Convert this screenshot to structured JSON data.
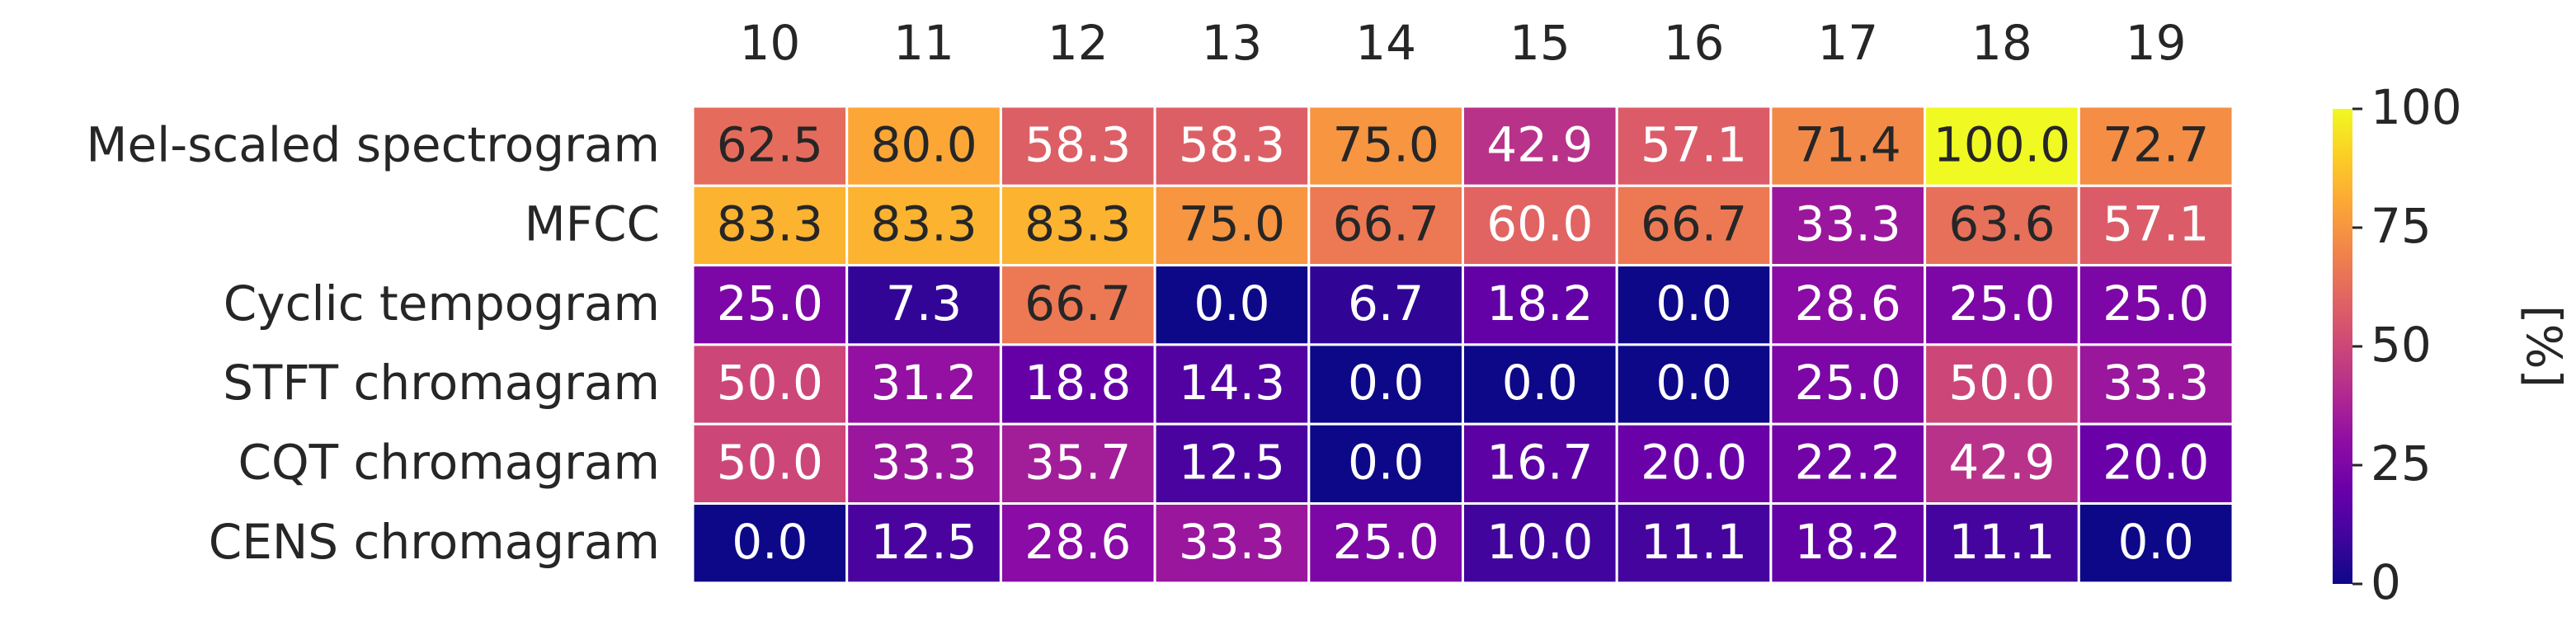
{
  "chart_data": {
    "type": "heatmap",
    "title": "",
    "xlabel": "",
    "ylabel": "",
    "x_categories": [
      "10",
      "11",
      "12",
      "13",
      "14",
      "15",
      "16",
      "17",
      "18",
      "19"
    ],
    "y_categories": [
      "Mel-scaled spectrogram",
      "MFCC",
      "Cyclic tempogram",
      "STFT chromagram",
      "CQT chromagram",
      "CENS chromagram"
    ],
    "values": [
      [
        62.5,
        80.0,
        58.3,
        58.3,
        75.0,
        42.9,
        57.1,
        71.4,
        100.0,
        72.7
      ],
      [
        83.3,
        83.3,
        83.3,
        75.0,
        66.7,
        60.0,
        66.7,
        33.3,
        63.6,
        57.1
      ],
      [
        25.0,
        7.3,
        66.7,
        0.0,
        6.7,
        18.2,
        0.0,
        28.6,
        25.0,
        25.0
      ],
      [
        50.0,
        31.2,
        18.8,
        14.3,
        0.0,
        0.0,
        0.0,
        25.0,
        50.0,
        33.3
      ],
      [
        50.0,
        33.3,
        35.7,
        12.5,
        0.0,
        16.7,
        20.0,
        22.2,
        42.9,
        20.0
      ],
      [
        0.0,
        12.5,
        28.6,
        33.3,
        25.0,
        10.0,
        11.1,
        18.2,
        11.1,
        0.0
      ]
    ],
    "value_labels": [
      [
        "62.5",
        "80.0",
        "58.3",
        "58.3",
        "75.0",
        "42.9",
        "57.1",
        "71.4",
        "100.0",
        "72.7"
      ],
      [
        "83.3",
        "83.3",
        "83.3",
        "75.0",
        "66.7",
        "60.0",
        "66.7",
        "33.3",
        "63.6",
        "57.1"
      ],
      [
        "25.0",
        "7.3",
        "66.7",
        "0.0",
        "6.7",
        "18.2",
        "0.0",
        "28.6",
        "25.0",
        "25.0"
      ],
      [
        "50.0",
        "31.2",
        "18.8",
        "14.3",
        "0.0",
        "0.0",
        "0.0",
        "25.0",
        "50.0",
        "33.3"
      ],
      [
        "50.0",
        "33.3",
        "35.7",
        "12.5",
        "0.0",
        "16.7",
        "20.0",
        "22.2",
        "42.9",
        "20.0"
      ],
      [
        "0.0",
        "12.5",
        "28.6",
        "33.3",
        "25.0",
        "10.0",
        "11.1",
        "18.2",
        "11.1",
        "0.0"
      ]
    ],
    "colormap": "plasma",
    "vmin": 0,
    "vmax": 100,
    "x_axis_position": "top",
    "grid": false,
    "colorbar": {
      "label": "[%]",
      "ticks": [
        0,
        25,
        50,
        75,
        100
      ],
      "tick_labels": [
        "0",
        "25",
        "50",
        "75",
        "100"
      ]
    }
  }
}
